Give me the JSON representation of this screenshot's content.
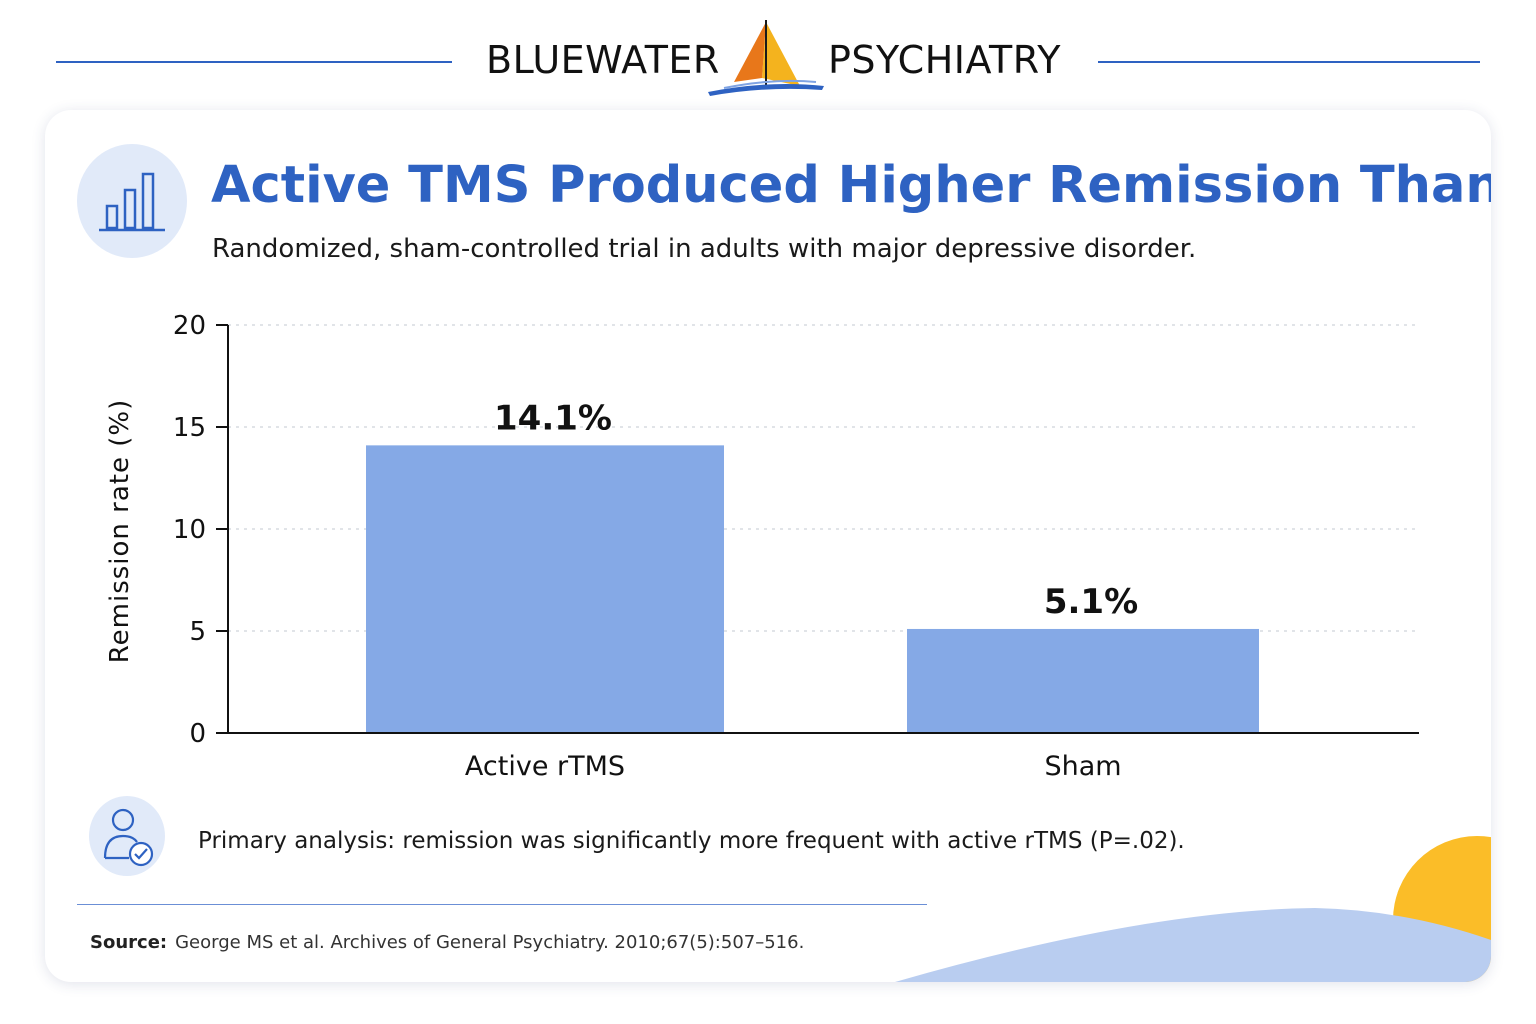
{
  "brand": {
    "left": "BLUEWATER",
    "right": "PSYCHIATRY",
    "colors": {
      "line": "#2e62c2",
      "sail_main": "#f4b31e",
      "sail_accent": "#e8771a",
      "hull": "#2e62c2"
    }
  },
  "header": {
    "title": "Active TMS Produced Higher Remission Than Sham",
    "subtitle": "Randomized, sham-controlled trial in adults with major depressive disorder.",
    "icon": "bar-chart-icon"
  },
  "chart_data": {
    "type": "bar",
    "categories": [
      "Active rTMS",
      "Sham"
    ],
    "values": [
      14.1,
      5.1
    ],
    "data_labels": [
      "14.1%",
      "5.1%"
    ],
    "ylabel": "Remission rate (%)",
    "xlabel": "",
    "ylim": [
      0,
      20
    ],
    "yticks": [
      0,
      5,
      10,
      15,
      20
    ],
    "grid": true,
    "legend": "none",
    "bar_color": "#85a9e6"
  },
  "footnote": {
    "icon": "person-check-icon",
    "text": "Primary analysis: remission was significantly more frequent with active rTMS (P=.02)."
  },
  "source": {
    "label": "Source:",
    "text": "George MS et al. Archives of General Psychiatry. 2010;67(5):507–516."
  },
  "colors": {
    "title": "#2e62c2",
    "icon_bg": "#e1eaf9",
    "wave": "#b9cdf0",
    "sun": "#fbbd28"
  }
}
